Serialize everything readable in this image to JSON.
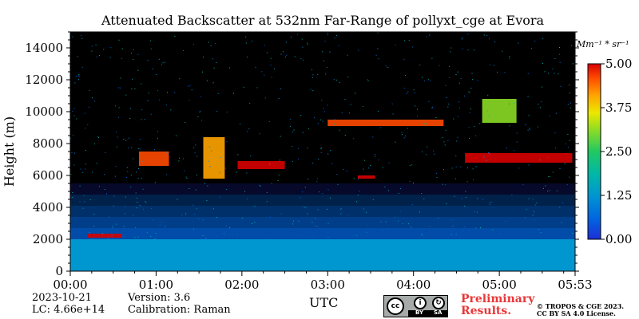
{
  "chart_data": {
    "type": "heatmap",
    "title": "Attenuated Backscatter at 532nm Far-Range of pollyxt_cge at Evora",
    "xlabel": "UTC",
    "ylabel": "Height (m)",
    "x_tick_labels": [
      "00:00",
      "01:00",
      "02:00",
      "03:00",
      "04:00",
      "05:00",
      "05:53"
    ],
    "x_tick_hours": [
      0,
      1,
      2,
      3,
      4,
      5,
      5.883
    ],
    "xlim_hours": [
      0,
      5.883
    ],
    "y_ticks": [
      0,
      2000,
      4000,
      6000,
      8000,
      10000,
      12000,
      14000
    ],
    "y_tick_labels": [
      "0",
      "2000",
      "4000",
      "6000",
      "8000",
      "10000",
      "12000",
      "14000"
    ],
    "ylim": [
      0,
      15000
    ],
    "colorbar": {
      "unit_label": "Mm^-1 * sr^-1",
      "unit_display": "Mm⁻¹ * sr⁻¹",
      "ticks": [
        0.0,
        1.25,
        2.5,
        3.75,
        5.0
      ],
      "tick_labels": [
        "0.00",
        "1.25",
        "2.50",
        "3.75",
        "5.00"
      ],
      "range": [
        0,
        5
      ]
    },
    "features": [
      {
        "kind": "boundary_layer",
        "description": "dense aerosol layer",
        "top_m": 2000,
        "value": 1.0
      },
      {
        "kind": "cloud",
        "t_start": 0.2,
        "t_end": 0.6,
        "h_bottom": 2100,
        "h_top": 2350,
        "value": 4.8
      },
      {
        "kind": "cloud",
        "t_start": 0.8,
        "t_end": 1.15,
        "h_bottom": 6600,
        "h_top": 7500,
        "value": 4.2
      },
      {
        "kind": "cloud",
        "t_start": 1.55,
        "t_end": 1.8,
        "h_bottom": 5800,
        "h_top": 8400,
        "value": 3.6
      },
      {
        "kind": "cloud",
        "t_start": 1.95,
        "t_end": 2.5,
        "h_bottom": 6400,
        "h_top": 6900,
        "value": 4.5
      },
      {
        "kind": "cloud",
        "t_start": 3.35,
        "t_end": 3.55,
        "h_bottom": 5800,
        "h_top": 6000,
        "value": 5.0
      },
      {
        "kind": "cloud",
        "t_start": 3.0,
        "t_end": 4.35,
        "h_bottom": 9100,
        "h_top": 9500,
        "value": 4.0
      },
      {
        "kind": "cloud",
        "t_start": 4.6,
        "t_end": 5.85,
        "h_bottom": 6800,
        "h_top": 7400,
        "value": 4.9
      },
      {
        "kind": "cloud",
        "t_start": 4.8,
        "t_end": 5.2,
        "h_bottom": 9300,
        "h_top": 10800,
        "value": 2.8
      }
    ]
  },
  "footer": {
    "date": "2023-10-21",
    "lc": "LC: 4.66e+14",
    "version": "Version: 3.6",
    "calibration": "Calibration: Raman",
    "preliminary_line1": "Preliminary",
    "preliminary_line2": "Results.",
    "copyright_line1": "© TROPOS & CGE 2023.",
    "copyright_line2": "CC BY SA 4.0 License.",
    "cc_by": "BY",
    "cc_sa": "SA"
  },
  "colors": {
    "colormap": [
      "#1e2fd8",
      "#0066e0",
      "#0096d0",
      "#00b7a8",
      "#22c862",
      "#8bdc26",
      "#ede800",
      "#ffa400",
      "#ff4a00",
      "#d80000"
    ],
    "no_data": "#000000",
    "preliminary_text": "#e8383a"
  }
}
